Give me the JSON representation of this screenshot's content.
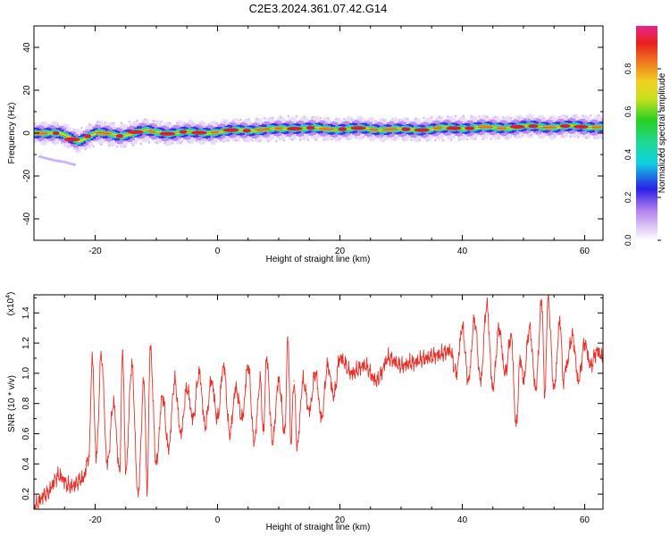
{
  "title": "C2E3.2024.361.07.42.G14",
  "chart_data": [
    {
      "type": "heatmap",
      "xlabel": "Height of straight line (km)",
      "ylabel": "Frequency (Hz)",
      "xlim": [
        -30,
        63
      ],
      "ylim": [
        -50,
        50
      ],
      "xticks": [
        -20,
        0,
        20,
        40,
        60
      ],
      "yticks": [
        -40,
        -20,
        0,
        20,
        40
      ],
      "colorbar": {
        "label": "Normalized spectral amplitude",
        "range": [
          0,
          1
        ],
        "ticks": [
          "0.0",
          "0.2",
          "0.4",
          "0.6",
          "0.8"
        ]
      },
      "ridge": {
        "x": [
          -30,
          -26,
          -23,
          -20,
          -16,
          -12,
          -8,
          -4,
          0,
          4,
          8,
          12,
          16,
          20,
          25,
          30,
          35,
          40,
          45,
          50,
          55,
          60,
          63
        ],
        "freq": [
          0.5,
          -0.5,
          -3.5,
          0,
          -1,
          1,
          0,
          0.3,
          0.5,
          1.5,
          1.5,
          2.5,
          2,
          2,
          2,
          1.5,
          2,
          2.5,
          2.5,
          3,
          3,
          3,
          3
        ]
      },
      "secondary_trace": {
        "x": [
          -29,
          -27,
          -25,
          -23
        ],
        "freq": [
          -11,
          -12.5,
          -13.5,
          -15
        ]
      }
    },
    {
      "type": "line",
      "xlabel": "Height of straight line (km)",
      "ylabel": "SNR (10 * v/v)",
      "yscale_label": "(x10",
      "yscale_exp": "4",
      "xlim": [
        -30,
        63
      ],
      "ylim": [
        0.1,
        1.52
      ],
      "xticks": [
        -20,
        0,
        20,
        40,
        60
      ],
      "yticks": [
        "0.2",
        "0.4",
        "0.6",
        "0.8",
        "1.0",
        "1.2",
        "1.4"
      ],
      "color": "#e8312b",
      "series": [
        {
          "name": "SNR",
          "x": [
            -30,
            -28,
            -26,
            -24,
            -22,
            -21,
            -20.5,
            -19.8,
            -19,
            -18,
            -17,
            -16,
            -15.5,
            -15,
            -14,
            -13,
            -12,
            -11.5,
            -11,
            -10,
            -9,
            -8,
            -7,
            -6,
            -5,
            -4,
            -3,
            -2,
            -1,
            0,
            1,
            2,
            3,
            4,
            5,
            6,
            7,
            7.5,
            8,
            9,
            10,
            11,
            11.5,
            12,
            12.5,
            13,
            14,
            15,
            16,
            17,
            18,
            19,
            20,
            22,
            24,
            26,
            28,
            30,
            32,
            34,
            36,
            38,
            39,
            40,
            41,
            42,
            43,
            44,
            45,
            46,
            47,
            48,
            48.8,
            49.5,
            50,
            51,
            52,
            53,
            53.5,
            54,
            55,
            56,
            56.5,
            57,
            58,
            59,
            60,
            61,
            62,
            63
          ],
          "y": [
            0.12,
            0.2,
            0.32,
            0.25,
            0.3,
            0.45,
            1.1,
            0.45,
            1.12,
            0.4,
            0.8,
            0.35,
            1.15,
            0.35,
            1.05,
            0.2,
            0.95,
            0.22,
            1.17,
            0.4,
            0.85,
            0.5,
            0.95,
            0.6,
            0.9,
            0.7,
            1.0,
            0.65,
            0.95,
            0.7,
            1.05,
            0.6,
            0.9,
            0.7,
            1.05,
            0.55,
            0.95,
            0.6,
            1.1,
            0.55,
            0.95,
            0.6,
            1.24,
            0.55,
            0.95,
            0.52,
            0.95,
            0.75,
            1.0,
            0.7,
            1.05,
            0.85,
            1.1,
            1.0,
            1.05,
            0.95,
            1.1,
            1.05,
            1.07,
            1.1,
            1.12,
            1.15,
            1.0,
            1.3,
            0.95,
            1.35,
            0.95,
            1.45,
            0.9,
            1.3,
            1.0,
            1.25,
            0.65,
            1.1,
            0.95,
            1.3,
            0.9,
            1.48,
            0.85,
            1.5,
            0.9,
            1.35,
            0.95,
            1.05,
            1.25,
            0.95,
            1.2,
            1.05,
            1.15,
            1.1
          ]
        }
      ]
    }
  ]
}
